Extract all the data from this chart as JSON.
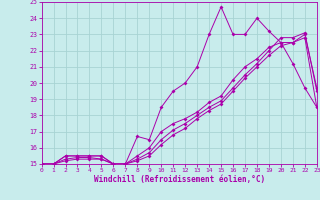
{
  "xlabel": "Windchill (Refroidissement éolien,°C)",
  "xlim": [
    0,
    23
  ],
  "ylim": [
    15,
    25
  ],
  "xticks": [
    0,
    1,
    2,
    3,
    4,
    5,
    6,
    7,
    8,
    9,
    10,
    11,
    12,
    13,
    14,
    15,
    16,
    17,
    18,
    19,
    20,
    21,
    22,
    23
  ],
  "yticks": [
    15,
    16,
    17,
    18,
    19,
    20,
    21,
    22,
    23,
    24,
    25
  ],
  "bg_color": "#c8ecec",
  "grid_color": "#a8d4d4",
  "line_color": "#aa00aa",
  "lines": [
    [
      15.0,
      15.0,
      15.5,
      15.5,
      15.5,
      15.5,
      15.0,
      15.0,
      16.7,
      16.5,
      18.5,
      19.5,
      20.0,
      21.0,
      23.0,
      24.7,
      23.0,
      23.0,
      24.0,
      23.2,
      22.5,
      21.2,
      19.7,
      18.5
    ],
    [
      15.0,
      15.0,
      15.5,
      15.5,
      15.5,
      15.5,
      15.0,
      15.0,
      15.5,
      16.0,
      17.0,
      17.5,
      17.8,
      18.2,
      18.8,
      19.2,
      20.2,
      21.0,
      21.5,
      22.2,
      22.5,
      22.5,
      23.0,
      19.7
    ],
    [
      15.0,
      15.0,
      15.3,
      15.4,
      15.4,
      15.3,
      15.0,
      15.0,
      15.3,
      15.7,
      16.5,
      17.1,
      17.5,
      18.0,
      18.5,
      18.9,
      19.7,
      20.5,
      21.2,
      22.0,
      22.8,
      22.8,
      23.1,
      19.5
    ],
    [
      15.0,
      15.0,
      15.2,
      15.3,
      15.3,
      15.3,
      15.0,
      15.0,
      15.2,
      15.5,
      16.2,
      16.8,
      17.2,
      17.8,
      18.3,
      18.7,
      19.5,
      20.3,
      21.0,
      21.7,
      22.3,
      22.5,
      22.8,
      18.5
    ]
  ]
}
